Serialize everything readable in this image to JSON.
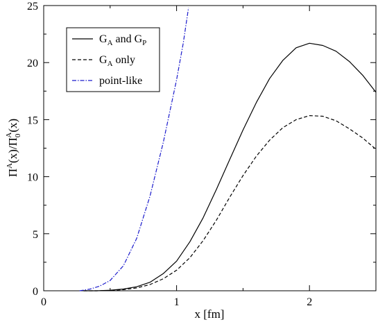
{
  "chart_data": {
    "type": "line",
    "xlabel": "x [fm]",
    "ylabel_parts": {
      "base1": "Π",
      "sup1": "A",
      "arg1": "(x)/",
      "base2": "Π",
      "sub2": "0",
      "sup2": "A",
      "arg2": "(x)"
    },
    "xlim": [
      0,
      2.5
    ],
    "ylim": [
      0,
      25
    ],
    "x_ticks": [
      0,
      1,
      2
    ],
    "x_tick_labels": [
      "0",
      "1",
      "2"
    ],
    "y_ticks": [
      0,
      5,
      10,
      15,
      20,
      25
    ],
    "y_tick_labels": [
      "0",
      "5",
      "10",
      "15",
      "20",
      "25"
    ],
    "legend": {
      "placement": "top-left",
      "entries": [
        {
          "id": "ga-gp",
          "text_parts": [
            "G",
            "A",
            " and G",
            "P"
          ]
        },
        {
          "id": "ga-only",
          "text_parts": [
            "G",
            "A",
            " only"
          ]
        },
        {
          "id": "point-like",
          "text_parts": [
            "point-like"
          ]
        }
      ]
    },
    "series": [
      {
        "id": "ga-gp",
        "color": "#000000",
        "dash": "solid",
        "x": [
          0.3,
          0.4,
          0.5,
          0.6,
          0.7,
          0.8,
          0.9,
          1.0,
          1.1,
          1.2,
          1.3,
          1.4,
          1.5,
          1.6,
          1.7,
          1.8,
          1.9,
          2.0,
          2.1,
          2.2,
          2.3,
          2.4,
          2.5
        ],
        "y": [
          0.0,
          0.0,
          0.05,
          0.15,
          0.35,
          0.75,
          1.5,
          2.6,
          4.3,
          6.4,
          8.9,
          11.5,
          14.1,
          16.5,
          18.6,
          20.2,
          21.3,
          21.7,
          21.5,
          21.0,
          20.1,
          18.9,
          17.4
        ]
      },
      {
        "id": "ga-only",
        "color": "#000000",
        "dash": "dashed",
        "x": [
          0.3,
          0.4,
          0.5,
          0.6,
          0.7,
          0.8,
          0.9,
          1.0,
          1.1,
          1.2,
          1.3,
          1.4,
          1.5,
          1.6,
          1.7,
          1.8,
          1.9,
          2.0,
          2.1,
          2.2,
          2.3,
          2.4,
          2.5
        ],
        "y": [
          0.0,
          0.0,
          0.03,
          0.1,
          0.25,
          0.55,
          1.05,
          1.8,
          2.9,
          4.4,
          6.2,
          8.2,
          10.1,
          11.8,
          13.2,
          14.3,
          15.0,
          15.35,
          15.3,
          14.9,
          14.2,
          13.4,
          12.4
        ]
      },
      {
        "id": "point-like",
        "color": "#1a1acc",
        "dash": "dashdot",
        "x": [
          0.27,
          0.35,
          0.42,
          0.5,
          0.6,
          0.7,
          0.8,
          0.9,
          1.0,
          1.05,
          1.09
        ],
        "y": [
          0.0,
          0.15,
          0.4,
          0.9,
          2.2,
          4.6,
          8.3,
          13.0,
          18.5,
          21.7,
          24.8
        ]
      }
    ]
  }
}
